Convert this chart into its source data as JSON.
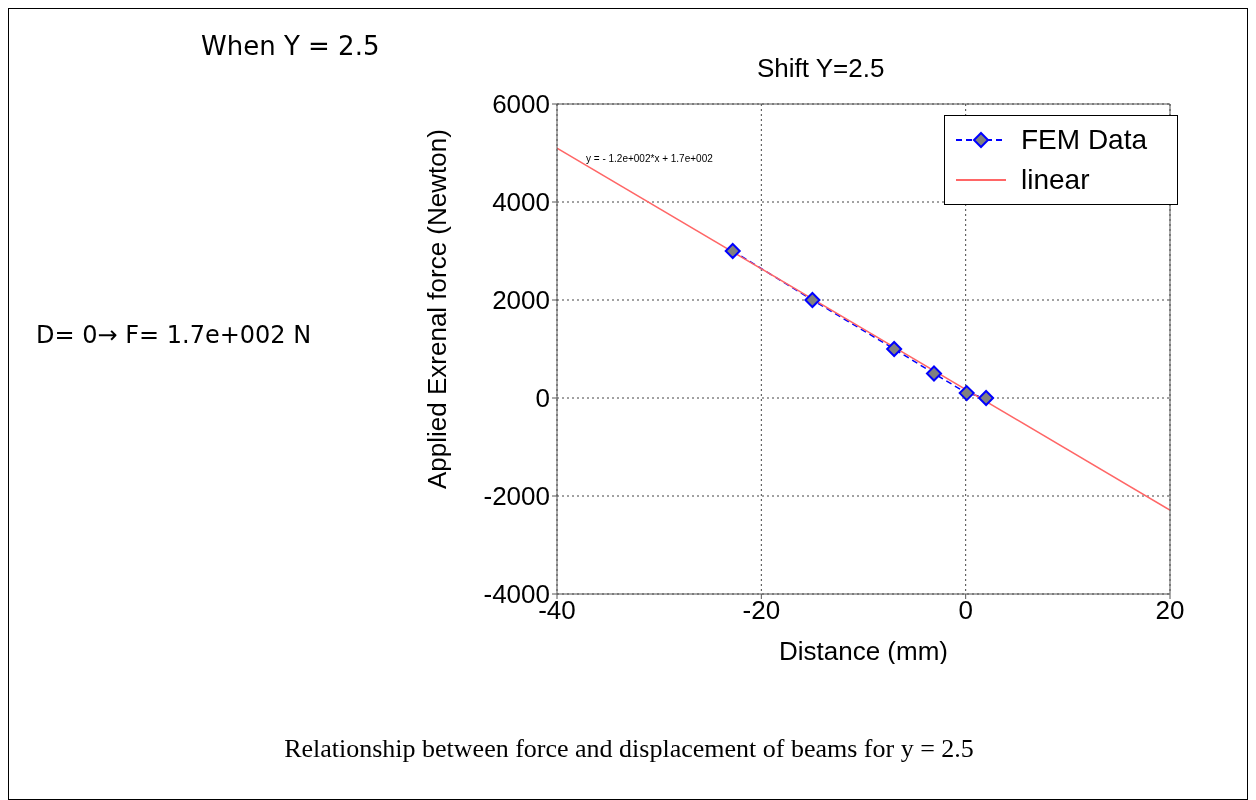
{
  "chart_data": {
    "type": "line",
    "title": "Shift Y=2.5",
    "xlabel": "Distance (mm)",
    "ylabel": "Applied Exrenal force (Newton)",
    "annotations": [
      "When Y = 2.5",
      "D= 0→ F= 1.7e+002 N",
      "y = - 1.2e+002*x + 1.7e+002",
      "Relationship between force and displacement of beams for y = 2.5"
    ],
    "xlim": [
      -40,
      20
    ],
    "xticks": [
      -40,
      -20,
      0,
      20
    ],
    "ylim": [
      -4000,
      6000
    ],
    "yticks": [
      -4000,
      -2000,
      0,
      2000,
      4000,
      6000
    ],
    "grid": true,
    "legend": "top right",
    "series": [
      {
        "name": "FEM Data",
        "color": "#0000ff",
        "x": [
          -22.8,
          -15,
          -7,
          -3.1,
          0.1,
          2
        ],
        "values": [
          3000,
          2000,
          1000,
          500,
          100,
          0
        ],
        "marker": "diamond",
        "line_style": "dashed"
      },
      {
        "name": "linear",
        "color": "#ff6666",
        "x": [
          -40,
          20
        ],
        "values": [
          5100,
          -2290
        ],
        "type": "line",
        "marker": "none",
        "line_style": "solid"
      }
    ]
  }
}
